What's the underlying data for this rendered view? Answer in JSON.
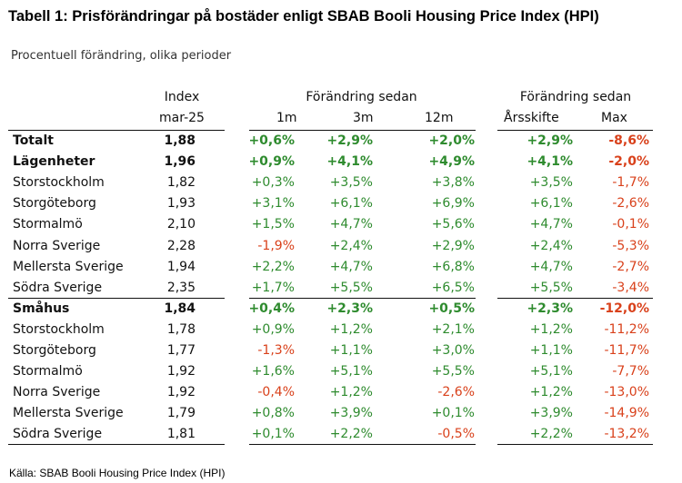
{
  "title": "Tabell 1: Prisförändringar på bostäder enligt SBAB Booli Housing Price Index (HPI)",
  "subtitle": "Procentuell förändring, olika perioder",
  "source": "Källa: SBAB Booli Housing Price Index (HPI)",
  "colors": {
    "positive": "#2e8b2e",
    "negative": "#d9411b",
    "text": "#111111"
  },
  "headers": {
    "index_top": "Index",
    "index_bottom": "mar-25",
    "change_group_1": "Förändring sedan",
    "change_group_2": "Förändring sedan",
    "m1": "1m",
    "m3": "3m",
    "m12": "12m",
    "arsskifte": "Årsskifte",
    "max": "Max"
  },
  "rows": [
    {
      "label": "Totalt",
      "index": "1,88",
      "m1": "+0,6%",
      "m3": "+2,9%",
      "m12": "+2,0%",
      "arsskifte": "+2,9%",
      "max": "-8,6%",
      "bold": true
    },
    {
      "label": "Lägenheter",
      "index": "1,96",
      "m1": "+0,9%",
      "m3": "+4,1%",
      "m12": "+4,9%",
      "arsskifte": "+4,1%",
      "max": "-2,0%",
      "bold": true
    },
    {
      "label": "Storstockholm",
      "index": "1,82",
      "m1": "+0,3%",
      "m3": "+3,5%",
      "m12": "+3,8%",
      "arsskifte": "+3,5%",
      "max": "-1,7%",
      "bold": false
    },
    {
      "label": "Storgöteborg",
      "index": "1,93",
      "m1": "+3,1%",
      "m3": "+6,1%",
      "m12": "+6,9%",
      "arsskifte": "+6,1%",
      "max": "-2,6%",
      "bold": false
    },
    {
      "label": "Stormalmö",
      "index": "2,10",
      "m1": "+1,5%",
      "m3": "+4,7%",
      "m12": "+5,6%",
      "arsskifte": "+4,7%",
      "max": "-0,1%",
      "bold": false
    },
    {
      "label": "Norra Sverige",
      "index": "2,28",
      "m1": "-1,9%",
      "m3": "+2,4%",
      "m12": "+2,9%",
      "arsskifte": "+2,4%",
      "max": "-5,3%",
      "bold": false
    },
    {
      "label": "Mellersta Sverige",
      "index": "1,94",
      "m1": "+2,2%",
      "m3": "+4,7%",
      "m12": "+6,8%",
      "arsskifte": "+4,7%",
      "max": "-2,7%",
      "bold": false
    },
    {
      "label": "Södra Sverige",
      "index": "2,35",
      "m1": "+1,7%",
      "m3": "+5,5%",
      "m12": "+6,5%",
      "arsskifte": "+5,5%",
      "max": "-3,4%",
      "bold": false
    },
    {
      "label": "Småhus",
      "index": "1,84",
      "m1": "+0,4%",
      "m3": "+2,3%",
      "m12": "+0,5%",
      "arsskifte": "+2,3%",
      "max": "-12,0%",
      "bold": true
    },
    {
      "label": "Storstockholm",
      "index": "1,78",
      "m1": "+0,9%",
      "m3": "+1,2%",
      "m12": "+2,1%",
      "arsskifte": "+1,2%",
      "max": "-11,2%",
      "bold": false
    },
    {
      "label": "Storgöteborg",
      "index": "1,77",
      "m1": "-1,3%",
      "m3": "+1,1%",
      "m12": "+3,0%",
      "arsskifte": "+1,1%",
      "max": "-11,7%",
      "bold": false
    },
    {
      "label": "Stormalmö",
      "index": "1,92",
      "m1": "+1,6%",
      "m3": "+5,1%",
      "m12": "+5,5%",
      "arsskifte": "+5,1%",
      "max": "-7,7%",
      "bold": false
    },
    {
      "label": "Norra Sverige",
      "index": "1,92",
      "m1": "-0,4%",
      "m3": "+1,2%",
      "m12": "-2,6%",
      "arsskifte": "+1,2%",
      "max": "-13,0%",
      "bold": false
    },
    {
      "label": "Mellersta Sverige",
      "index": "1,79",
      "m1": "+0,8%",
      "m3": "+3,9%",
      "m12": "+0,1%",
      "arsskifte": "+3,9%",
      "max": "-14,9%",
      "bold": false
    },
    {
      "label": "Södra Sverige",
      "index": "1,81",
      "m1": "+0,1%",
      "m3": "+2,2%",
      "m12": "-0,5%",
      "arsskifte": "+2,2%",
      "max": "-13,2%",
      "bold": false
    }
  ]
}
